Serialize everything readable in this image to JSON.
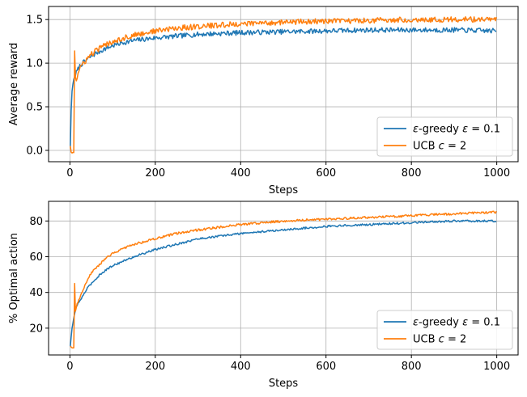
{
  "colors": {
    "series0": "#1f77b4",
    "series1": "#ff7f0e",
    "grid": "#b0b0b0"
  },
  "chart_data": [
    {
      "type": "line",
      "xlabel": "Steps",
      "ylabel": "Average reward",
      "xlim": [
        -50,
        1050
      ],
      "ylim": [
        -0.13,
        1.65
      ],
      "xticks": [
        0,
        200,
        400,
        600,
        800,
        1000
      ],
      "xtick_labels": [
        "0",
        "200",
        "400",
        "600",
        "800",
        "1000"
      ],
      "yticks": [
        0.0,
        0.5,
        1.0,
        1.5
      ],
      "ytick_labels": [
        "0.0",
        "0.5",
        "1.0",
        "1.5"
      ],
      "grid": true,
      "legend_position": "lower-right",
      "series": [
        {
          "name": "ε-greedy ε = 0.1",
          "x": [
            1,
            3,
            5,
            8,
            12,
            16,
            20,
            25,
            30,
            40,
            50,
            60,
            80,
            100,
            120,
            150,
            200,
            250,
            300,
            400,
            500,
            600,
            700,
            800,
            900,
            1000
          ],
          "values": [
            0.05,
            0.45,
            0.68,
            0.8,
            0.86,
            0.9,
            0.94,
            0.98,
            1.0,
            1.04,
            1.08,
            1.11,
            1.16,
            1.2,
            1.23,
            1.26,
            1.29,
            1.31,
            1.33,
            1.35,
            1.36,
            1.37,
            1.38,
            1.38,
            1.38,
            1.37
          ]
        },
        {
          "name": "UCB c = 2",
          "x": [
            1,
            3,
            5,
            8,
            10,
            11,
            12,
            15,
            20,
            25,
            30,
            40,
            50,
            60,
            80,
            100,
            120,
            150,
            200,
            250,
            300,
            400,
            500,
            600,
            700,
            800,
            900,
            1000
          ],
          "values": [
            0.05,
            -0.02,
            -0.03,
            -0.02,
            -0.03,
            1.14,
            0.88,
            0.8,
            0.9,
            0.96,
            0.98,
            1.05,
            1.1,
            1.14,
            1.2,
            1.25,
            1.28,
            1.32,
            1.37,
            1.4,
            1.42,
            1.45,
            1.47,
            1.48,
            1.49,
            1.5,
            1.5,
            1.5
          ]
        }
      ]
    },
    {
      "type": "line",
      "xlabel": "Steps",
      "ylabel": "% Optimal action",
      "xlim": [
        -50,
        1050
      ],
      "ylim": [
        5,
        91
      ],
      "xticks": [
        0,
        200,
        400,
        600,
        800,
        1000
      ],
      "xtick_labels": [
        "0",
        "200",
        "400",
        "600",
        "800",
        "1000"
      ],
      "yticks": [
        20,
        40,
        60,
        80
      ],
      "ytick_labels": [
        "20",
        "40",
        "60",
        "80"
      ],
      "grid": true,
      "legend_position": "lower-right",
      "series": [
        {
          "name": "ε-greedy ε = 0.1",
          "x": [
            1,
            5,
            10,
            15,
            20,
            30,
            40,
            50,
            75,
            100,
            150,
            200,
            250,
            300,
            400,
            500,
            600,
            700,
            800,
            900,
            1000
          ],
          "values": [
            10,
            20,
            27,
            32,
            34,
            38,
            42,
            45,
            51,
            55,
            60,
            64,
            67,
            70,
            73,
            75,
            77,
            78,
            79,
            80,
            80
          ]
        },
        {
          "name": "UCB c = 2",
          "x": [
            1,
            5,
            10,
            11,
            12,
            15,
            20,
            30,
            40,
            50,
            75,
            100,
            150,
            200,
            250,
            300,
            400,
            500,
            600,
            700,
            800,
            900,
            1000
          ],
          "values": [
            10,
            9,
            9,
            45,
            28,
            32,
            35,
            41,
            46,
            51,
            57,
            62,
            67,
            70,
            73,
            75,
            78,
            80,
            81,
            82,
            83,
            84,
            85
          ]
        }
      ]
    }
  ],
  "legend": {
    "entries": [
      {
        "prefix": "ε",
        "rest": "-greedy ",
        "param": "ε",
        "suffix": " = 0.1"
      },
      {
        "prefix": "UCB ",
        "rest": "",
        "param": "c",
        "suffix": " = 2"
      }
    ]
  }
}
